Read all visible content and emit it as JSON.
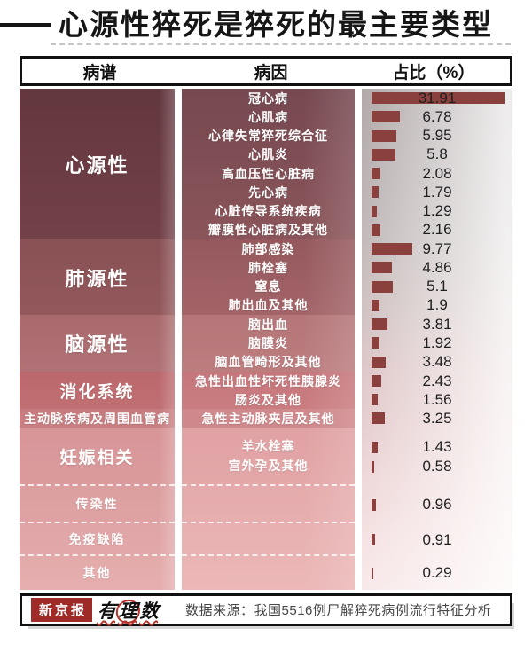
{
  "title": "心源性猝死是猝死的最主要类型",
  "table": {
    "headers": [
      "病谱",
      "病因",
      "占比（%）"
    ],
    "sections": [
      {
        "category": "心源性",
        "rows": [
          {
            "cause": "冠心病",
            "value": "31.91"
          },
          {
            "cause": "心肌病",
            "value": "6.78"
          },
          {
            "cause": "心律失常猝死综合征",
            "value": "5.95"
          },
          {
            "cause": "心肌炎",
            "value": "5.8"
          },
          {
            "cause": "高血压性心脏病",
            "value": "2.08"
          },
          {
            "cause": "先心病",
            "value": "1.79"
          },
          {
            "cause": "心脏传导系统疾病",
            "value": "1.29"
          },
          {
            "cause": "瓣膜性心脏病及其他",
            "value": "2.16"
          }
        ]
      },
      {
        "category": "肺源性",
        "rows": [
          {
            "cause": "肺部感染",
            "value": "9.77"
          },
          {
            "cause": "肺栓塞",
            "value": "4.86"
          },
          {
            "cause": "窒息",
            "value": "5.1"
          },
          {
            "cause": "肺出血及其他",
            "value": "1.9"
          }
        ]
      },
      {
        "category": "脑源性",
        "rows": [
          {
            "cause": "脑出血",
            "value": "3.81"
          },
          {
            "cause": "脑膜炎",
            "value": "1.92"
          },
          {
            "cause": "脑血管畸形及其他",
            "value": "3.48"
          }
        ]
      },
      {
        "category": "消化系统",
        "rows": [
          {
            "cause": "急性出血性坏死性胰腺炎",
            "value": "2.43"
          },
          {
            "cause": "肠炎及其他",
            "value": "1.56"
          }
        ]
      },
      {
        "category": "主动脉疾病及周围血管病",
        "rows": [
          {
            "cause": "急性主动脉夹层及其他",
            "value": "3.25"
          }
        ]
      },
      {
        "category": "妊娠相关",
        "rows": [
          {
            "cause": "羊水栓塞",
            "value": "1.43"
          },
          {
            "cause": "宫外孕及其他",
            "value": "0.58"
          }
        ]
      },
      {
        "category": "传染性",
        "rows": [
          {
            "cause": "",
            "value": "0.96"
          }
        ]
      },
      {
        "category": "免疫缺陷",
        "rows": [
          {
            "cause": "",
            "value": "0.91"
          }
        ]
      },
      {
        "category": "其他",
        "rows": [
          {
            "cause": "",
            "value": "0.29"
          }
        ]
      }
    ]
  },
  "footer": {
    "brand_bjnews": "新京报",
    "brand_youlishu": "有理数",
    "source": "数据来源：我国5516例尸解猝死病例流行特征分析"
  },
  "colors": {
    "bar": "#8a403c",
    "brand_red": "#9e2b28",
    "category_dark": "#63373e",
    "category_light": "#e6aeae"
  },
  "chart_data": {
    "type": "bar",
    "orientation": "horizontal",
    "title": "心源性猝死是猝死的最主要类型",
    "value_unit": "%",
    "xlim": [
      0,
      32
    ],
    "grid": false,
    "legend": false,
    "groups": [
      {
        "name": "心源性",
        "categories": [
          "冠心病",
          "心肌病",
          "心律失常猝死综合征",
          "心肌炎",
          "高血压性心脏病",
          "先心病",
          "心脏传导系统疾病",
          "瓣膜性心脏病及其他"
        ],
        "values": [
          31.91,
          6.78,
          5.95,
          5.8,
          2.08,
          1.79,
          1.29,
          2.16
        ]
      },
      {
        "name": "肺源性",
        "categories": [
          "肺部感染",
          "肺栓塞",
          "窒息",
          "肺出血及其他"
        ],
        "values": [
          9.77,
          4.86,
          5.1,
          1.9
        ]
      },
      {
        "name": "脑源性",
        "categories": [
          "脑出血",
          "脑膜炎",
          "脑血管畸形及其他"
        ],
        "values": [
          3.81,
          1.92,
          3.48
        ]
      },
      {
        "name": "消化系统",
        "categories": [
          "急性出血性坏死性胰腺炎",
          "肠炎及其他"
        ],
        "values": [
          2.43,
          1.56
        ]
      },
      {
        "name": "主动脉疾病及周围血管病",
        "categories": [
          "急性主动脉夹层及其他"
        ],
        "values": [
          3.25
        ]
      },
      {
        "name": "妊娠相关",
        "categories": [
          "羊水栓塞",
          "宫外孕及其他"
        ],
        "values": [
          1.43,
          0.58
        ]
      },
      {
        "name": "传染性",
        "categories": [
          "传染性"
        ],
        "values": [
          0.96
        ]
      },
      {
        "name": "免疫缺陷",
        "categories": [
          "免疫缺陷"
        ],
        "values": [
          0.91
        ]
      },
      {
        "name": "其他",
        "categories": [
          "其他"
        ],
        "values": [
          0.29
        ]
      }
    ]
  }
}
